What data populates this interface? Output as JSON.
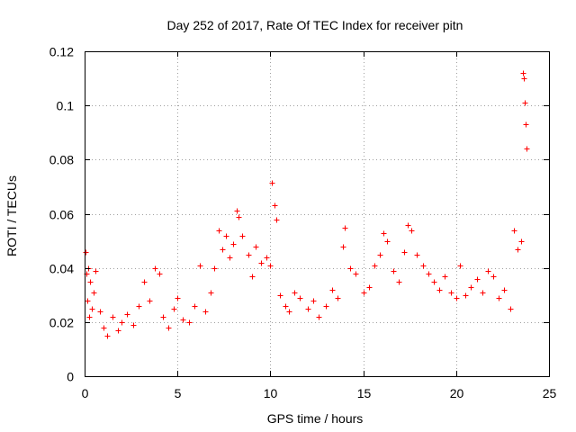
{
  "chart_data": {
    "type": "scatter",
    "title": "Day 252 of 2017, Rate Of TEC Index for receiver pitn",
    "xlabel": "GPS time / hours",
    "ylabel": "ROTI / TECUs",
    "xlim": [
      0,
      25
    ],
    "ylim": [
      0,
      0.12
    ],
    "x_ticks": [
      "0",
      "5",
      "10",
      "15",
      "20",
      "25"
    ],
    "y_ticks": [
      "0",
      "0.02",
      "0.04",
      "0.06",
      "0.08",
      "0.1",
      "0.12"
    ],
    "grid": true,
    "marker": "+",
    "color": "#ff0000",
    "series": [
      {
        "x": [
          0.05,
          0.1,
          0.15,
          0.2,
          0.25,
          0.3,
          0.4,
          0.5,
          0.6,
          0.8,
          1.0,
          1.2,
          1.5,
          1.8,
          2.0,
          2.3,
          2.6,
          2.9,
          3.2,
          3.5,
          3.8,
          4.0,
          4.2,
          4.5,
          4.8,
          5.0,
          5.3,
          5.6,
          5.9,
          6.2,
          6.5,
          6.8,
          7.0,
          7.2,
          7.4,
          7.6,
          7.8,
          8.0,
          8.2,
          8.3,
          8.5,
          8.8,
          9.0,
          9.2,
          9.5,
          9.8,
          10.0,
          10.1,
          10.2,
          10.3,
          10.5,
          10.8,
          11.0,
          11.3,
          11.6,
          12.0,
          12.3,
          12.6,
          13.0,
          13.3,
          13.6,
          13.9,
          14.0,
          14.3,
          14.6,
          15.0,
          15.3,
          15.6,
          15.9,
          16.1,
          16.3,
          16.6,
          16.9,
          17.2,
          17.4,
          17.6,
          17.9,
          18.2,
          18.5,
          18.8,
          19.1,
          19.4,
          19.7,
          20.0,
          20.2,
          20.5,
          20.8,
          21.1,
          21.4,
          21.7,
          22.0,
          22.3,
          22.6,
          22.9,
          23.1,
          23.3,
          23.5,
          23.6,
          23.65,
          23.7,
          23.75,
          23.8
        ],
        "y": [
          0.046,
          0.038,
          0.028,
          0.04,
          0.022,
          0.035,
          0.025,
          0.031,
          0.039,
          0.024,
          0.018,
          0.015,
          0.022,
          0.017,
          0.02,
          0.023,
          0.019,
          0.026,
          0.035,
          0.028,
          0.04,
          0.038,
          0.022,
          0.018,
          0.025,
          0.029,
          0.021,
          0.02,
          0.026,
          0.041,
          0.024,
          0.031,
          0.04,
          0.054,
          0.047,
          0.052,
          0.044,
          0.049,
          0.061,
          0.059,
          0.052,
          0.045,
          0.037,
          0.048,
          0.042,
          0.044,
          0.041,
          0.0715,
          0.063,
          0.058,
          0.03,
          0.026,
          0.024,
          0.031,
          0.029,
          0.025,
          0.028,
          0.022,
          0.026,
          0.032,
          0.029,
          0.048,
          0.055,
          0.04,
          0.038,
          0.031,
          0.033,
          0.041,
          0.045,
          0.053,
          0.05,
          0.039,
          0.035,
          0.046,
          0.056,
          0.054,
          0.045,
          0.041,
          0.038,
          0.035,
          0.032,
          0.037,
          0.031,
          0.029,
          0.041,
          0.03,
          0.033,
          0.036,
          0.031,
          0.039,
          0.037,
          0.029,
          0.032,
          0.025,
          0.054,
          0.047,
          0.05,
          0.112,
          0.11,
          0.101,
          0.093,
          0.084
        ]
      }
    ]
  }
}
